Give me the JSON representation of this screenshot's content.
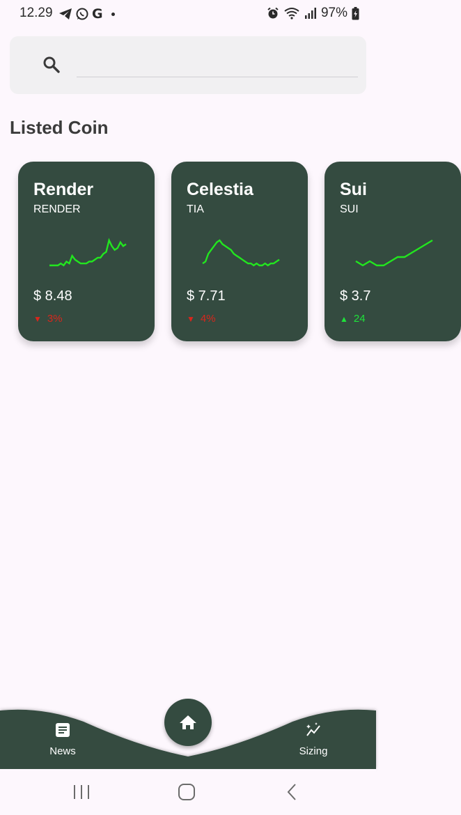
{
  "status_bar": {
    "time": "12.29",
    "battery": "97%",
    "left_icons": [
      "telegram-icon",
      "whatsapp-icon",
      "google-icon",
      "notification-dot"
    ],
    "right_icons": [
      "alarm-icon",
      "wifi-icon",
      "signal-icon",
      "battery-charging-icon"
    ]
  },
  "search": {
    "placeholder": "",
    "value": ""
  },
  "section_title": "Listed Coin",
  "coins": [
    {
      "name": "Render",
      "symbol": "RENDER",
      "price": "$ 8.48",
      "change": "3%",
      "direction": "down",
      "sparkline": [
        2,
        2,
        2,
        2,
        3,
        2,
        4,
        3,
        7,
        5,
        4,
        3,
        3,
        3,
        4,
        4,
        5,
        6,
        6,
        8,
        9,
        15,
        12,
        10,
        11,
        14,
        12,
        13
      ]
    },
    {
      "name": "Celestia",
      "symbol": "TIA",
      "price": "$ 7.71",
      "change": "4%",
      "direction": "down",
      "sparkline": [
        3,
        4,
        8,
        10,
        12,
        14,
        15,
        13,
        12,
        11,
        10,
        8,
        7,
        6,
        5,
        4,
        3,
        3,
        2,
        3,
        2,
        2,
        3,
        2,
        3,
        3,
        4,
        5
      ]
    },
    {
      "name": "Sui",
      "symbol": "SUI",
      "price": "$ 3.7",
      "change": "24",
      "direction": "up",
      "sparkline": [
        4,
        3,
        4,
        3,
        3,
        4,
        5,
        5,
        6,
        7,
        8,
        9
      ]
    }
  ],
  "bottom_nav": {
    "news_label": "News",
    "sizing_label": "Sizing",
    "home_icon": "home-icon"
  },
  "colors": {
    "card": "#344b40",
    "spark": "#22e61f",
    "down": "#d9261c",
    "up": "#1ee33a",
    "background": "#fdf7fd"
  }
}
